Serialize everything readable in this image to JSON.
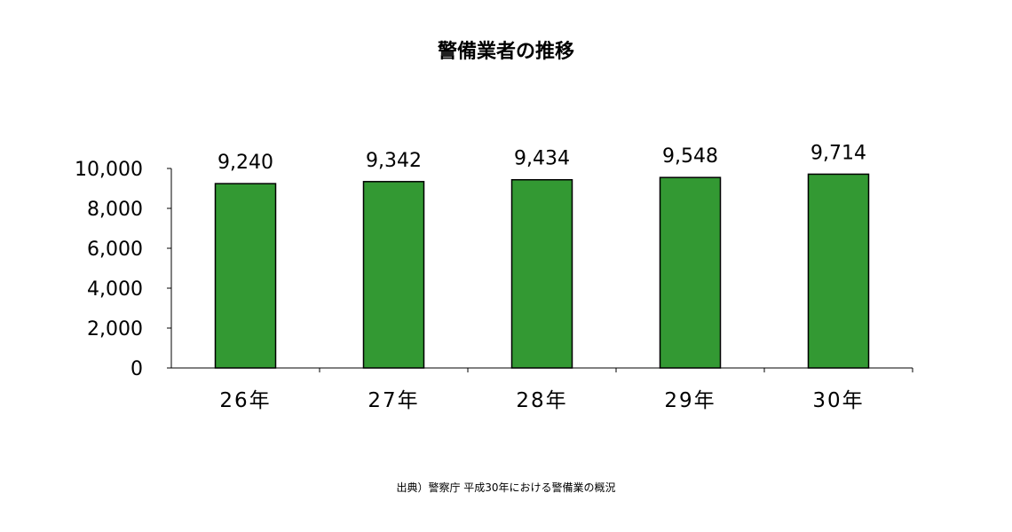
{
  "chart_data": {
    "type": "bar",
    "title": "警備業者の推移",
    "categories": [
      "26年",
      "27年",
      "28年",
      "29年",
      "30年"
    ],
    "values": [
      9240,
      9342,
      9434,
      9548,
      9714
    ],
    "value_labels": [
      "9,240",
      "9,342",
      "9,434",
      "9,548",
      "9,714"
    ],
    "yticks": [
      0,
      2000,
      4000,
      6000,
      8000,
      10000
    ],
    "ytick_labels": [
      "0",
      "2,000",
      "4,000",
      "6,000",
      "8,000",
      "10,000"
    ],
    "ylim": [
      0,
      10000
    ],
    "xlabel": "",
    "ylabel": "",
    "grid": false,
    "legend": "none",
    "bar_color": "#339933",
    "bar_edge_color": "#000000"
  },
  "source": "出典）警察庁 平成30年における警備業の概況"
}
